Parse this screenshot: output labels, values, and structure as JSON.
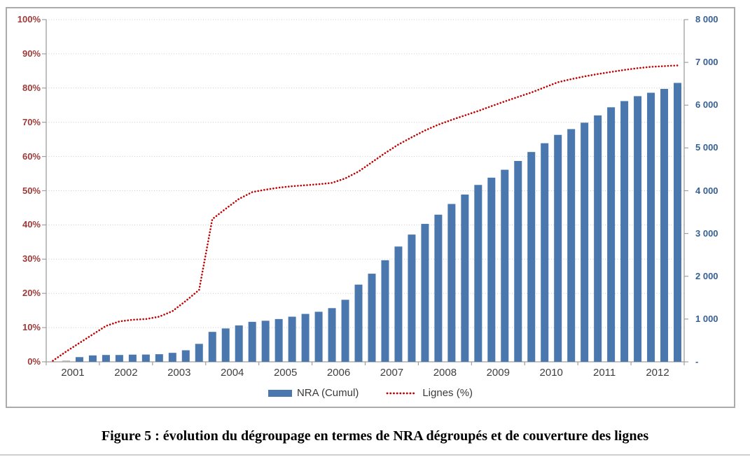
{
  "figure": {
    "caption": "Figure 5 : évolution du dégroupage en termes de NRA dégroupés et de couverture des lignes"
  },
  "legend": {
    "bar_label": "NRA (Cumul)",
    "line_label": "Lignes (%)"
  },
  "colors": {
    "bar": "#4a77ae",
    "bar_first": "#b3b3b3",
    "line": "#c00000",
    "left_axis_text": "#9c3a39",
    "right_axis_text": "#376092",
    "x_axis_text": "#3f3f3f",
    "gridline": "#c9c9c9",
    "axis_line": "#9f9f9f",
    "frame_border": "#ababab"
  },
  "chart_data": {
    "type": "bar",
    "title": "",
    "xlabel": "",
    "ylabel_left": "",
    "ylabel_right": "",
    "grid": true,
    "legend_position": "bottom",
    "x": [
      "2001 T1",
      "2001 T2",
      "2001 T3",
      "2001 T4",
      "2002 T1",
      "2002 T2",
      "2002 T3",
      "2002 T4",
      "2003 T1",
      "2003 T2",
      "2003 T3",
      "2003 T4",
      "2004 T1",
      "2004 T2",
      "2004 T3",
      "2004 T4",
      "2005 T1",
      "2005 T2",
      "2005 T3",
      "2005 T4",
      "2006 T1",
      "2006 T2",
      "2006 T3",
      "2006 T4",
      "2007 T1",
      "2007 T2",
      "2007 T3",
      "2007 T4",
      "2008 T1",
      "2008 T2",
      "2008 T3",
      "2008 T4",
      "2009 T1",
      "2009 T2",
      "2009 T3",
      "2009 T4",
      "2010 T1",
      "2010 T2",
      "2010 T3",
      "2010 T4",
      "2011 T1",
      "2011 T2",
      "2011 T3",
      "2011 T4",
      "2012 T1",
      "2012 T2",
      "2012 T3",
      "2012 T4"
    ],
    "x_axis": {
      "tick_labels": [
        "2001",
        "2002",
        "2003",
        "2004",
        "2005",
        "2006",
        "2007",
        "2008",
        "2009",
        "2010",
        "2011",
        "2012"
      ]
    },
    "left_axis": {
      "range": [
        0,
        100
      ],
      "tick_labels": [
        "0%",
        "10%",
        "20%",
        "30%",
        "40%",
        "50%",
        "60%",
        "70%",
        "80%",
        "90%",
        "100%"
      ],
      "applies_to": "Lignes (%)"
    },
    "right_axis": {
      "range": [
        0,
        8000
      ],
      "tick_labels": [
        "-",
        "1 000",
        "2 000",
        "3 000",
        "4 000",
        "5 000",
        "6 000",
        "7 000",
        "8 000"
      ],
      "applies_to": "NRA (Cumul)"
    },
    "series": [
      {
        "name": "NRA (Cumul)",
        "type": "bar",
        "axis": "right",
        "values": [
          0,
          30,
          110,
          150,
          160,
          160,
          168,
          170,
          178,
          210,
          270,
          420,
          700,
          780,
          850,
          935,
          960,
          1000,
          1055,
          1120,
          1170,
          1255,
          1450,
          1805,
          2060,
          2375,
          2695,
          2975,
          3225,
          3440,
          3690,
          3910,
          4135,
          4305,
          4490,
          4695,
          4905,
          5110,
          5305,
          5440,
          5590,
          5760,
          5950,
          6095,
          6210,
          6290,
          6380,
          6520
        ]
      },
      {
        "name": "Lignes (%)",
        "type": "line",
        "axis": "left",
        "values": [
          0.3,
          3.0,
          5.5,
          8.0,
          10.5,
          11.8,
          12.3,
          12.5,
          13.2,
          14.8,
          17.8,
          21.0,
          41.7,
          44.7,
          47.6,
          49.6,
          50.3,
          50.9,
          51.3,
          51.6,
          51.9,
          52.3,
          53.6,
          55.6,
          58.3,
          61.0,
          63.5,
          65.6,
          67.6,
          69.3,
          70.7,
          72.0,
          73.3,
          74.7,
          76.1,
          77.4,
          78.7,
          80.2,
          81.7,
          82.6,
          83.4,
          84.1,
          84.7,
          85.3,
          85.8,
          86.2,
          86.4,
          86.6
        ]
      }
    ]
  }
}
